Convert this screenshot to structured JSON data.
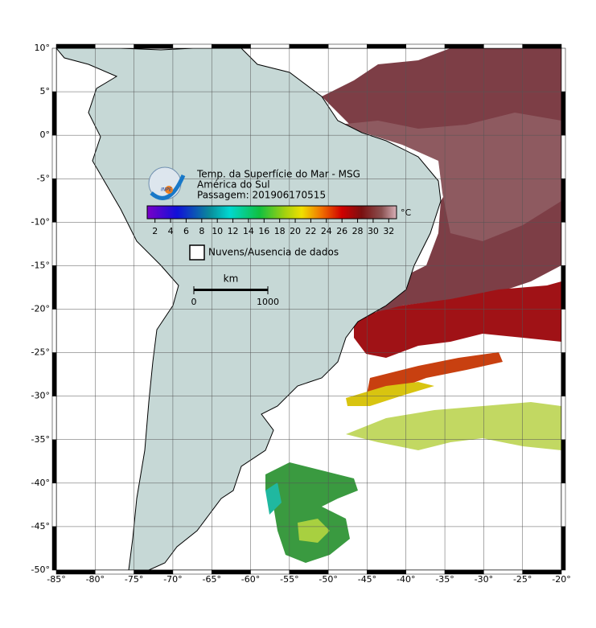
{
  "map": {
    "lon_lim": [
      -85,
      -20
    ],
    "lat_lim": [
      -50,
      10
    ],
    "lon_ticks": [
      {
        "value": -85,
        "label": "-85°"
      },
      {
        "value": -80,
        "label": "-80°"
      },
      {
        "value": -75,
        "label": "-75°"
      },
      {
        "value": -70,
        "label": "-70°"
      },
      {
        "value": -65,
        "label": "-65°"
      },
      {
        "value": -60,
        "label": "-60°"
      },
      {
        "value": -55,
        "label": "-55°"
      },
      {
        "value": -50,
        "label": "-50°"
      },
      {
        "value": -45,
        "label": "-45°"
      },
      {
        "value": -40,
        "label": "-40°"
      },
      {
        "value": -35,
        "label": "-35°"
      },
      {
        "value": -30,
        "label": "-30°"
      },
      {
        "value": -25,
        "label": "-25°"
      },
      {
        "value": -20,
        "label": "-20°"
      }
    ],
    "lat_ticks": [
      {
        "value": 10,
        "label": "10°"
      },
      {
        "value": 5,
        "label": "5°"
      },
      {
        "value": 0,
        "label": "0°"
      },
      {
        "value": -5,
        "label": "-5°"
      },
      {
        "value": -10,
        "label": "-10°"
      },
      {
        "value": -15,
        "label": "-15°"
      },
      {
        "value": -20,
        "label": "-20°"
      },
      {
        "value": -25,
        "label": "-25°"
      },
      {
        "value": -30,
        "label": "-30°"
      },
      {
        "value": -35,
        "label": "-35°"
      },
      {
        "value": -40,
        "label": "-40°"
      },
      {
        "value": -45,
        "label": "-45°"
      },
      {
        "value": -50,
        "label": "-50°"
      }
    ]
  },
  "legend": {
    "logo": "INPE",
    "title": "Temp. da Superfície do Mar - MSG",
    "region": "América do Sul",
    "pass": "Passagem: 201906170515",
    "colorbar": {
      "lim": [
        1,
        33
      ],
      "ticks": [
        2,
        4,
        6,
        8,
        10,
        12,
        14,
        16,
        18,
        20,
        22,
        24,
        26,
        28,
        30,
        32
      ],
      "unit": "°C"
    },
    "no_data": "Nuvens/Ausencia de dados"
  },
  "scale_bar": {
    "unit": "km",
    "ticks": [
      0,
      1000
    ]
  }
}
